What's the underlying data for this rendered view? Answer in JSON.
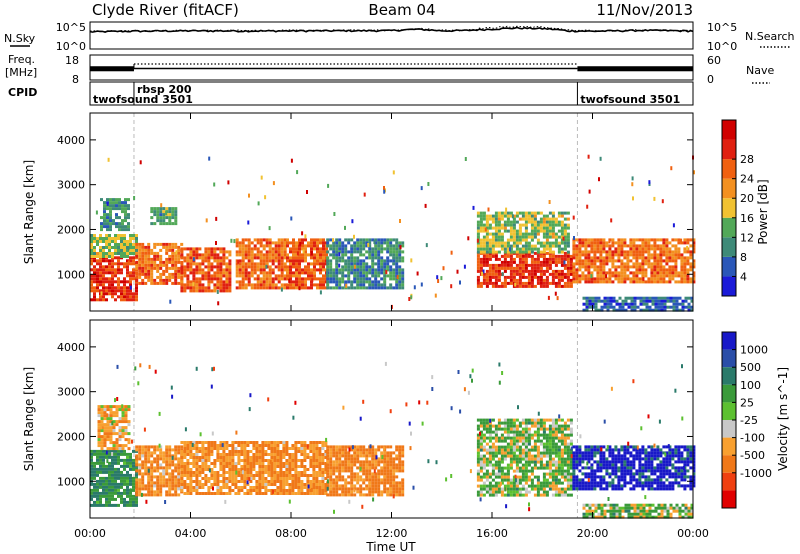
{
  "header": {
    "station": "Clyde River (fitACF)",
    "beam": "Beam 04",
    "date": "11/Nov/2013"
  },
  "side_labels": {
    "nsky": "N.Sky",
    "nsearch": "N.Search",
    "freq_line1": "Freq.",
    "freq_line2": "[MHz]",
    "nave": "Nave",
    "cpid": "CPID"
  },
  "noise_axis": {
    "left_ticks": [
      "10^5",
      "10^0"
    ],
    "right_ticks": [
      "10^5",
      "10^0"
    ]
  },
  "freq_axis": {
    "left_ticks": [
      "18",
      "8"
    ],
    "right_ticks": [
      "60",
      "0"
    ]
  },
  "cpid_segments": [
    {
      "label": "twofsound 3501",
      "start": 0.0,
      "end": 1.75
    },
    {
      "label": "rbsp 200",
      "start": 1.75,
      "end": 19.4
    },
    {
      "label": "twofsound 3501",
      "start": 19.4,
      "end": 24.0
    }
  ],
  "colors": {
    "power_scale": [
      "#1b1bd8",
      "#2a57b8",
      "#3e8a78",
      "#52a858",
      "#f1c232",
      "#f39020",
      "#f06010",
      "#e02010",
      "#d00000"
    ],
    "velocity_scale": [
      "#1818c8",
      "#2a4ea8",
      "#2a7a6a",
      "#3a9a3a",
      "#5cc030",
      "#c8c8c8",
      "#f8a030",
      "#f07818",
      "#f04010",
      "#e00000"
    ]
  },
  "chart_data": [
    {
      "type": "line",
      "title": "",
      "xlabel": "",
      "ylabel": "N.Sky",
      "y2label": "N.Search",
      "xlim": [
        0,
        24
      ],
      "ylim": [
        1,
        100000
      ],
      "yscale": "log",
      "series": [
        {
          "name": "N.Sky",
          "style": "solid",
          "x": [
            0,
            2,
            4,
            6,
            8,
            10,
            12,
            13,
            14,
            15,
            16,
            17,
            18,
            19,
            20,
            22,
            24
          ],
          "values": [
            1800,
            2600,
            3000,
            2800,
            2900,
            3100,
            3400,
            6500,
            3000,
            3500,
            7000,
            12000,
            9000,
            3000,
            2400,
            3800,
            2800
          ]
        },
        {
          "name": "N.Search",
          "style": "dotted",
          "x": [
            0,
            2,
            4,
            6,
            8,
            10,
            12,
            13,
            14,
            15,
            16,
            17,
            18,
            19,
            20,
            22,
            24
          ],
          "values": [
            2200,
            3200,
            3600,
            3300,
            3500,
            3800,
            4200,
            9000,
            4000,
            5000,
            14000,
            26000,
            18000,
            4000,
            2900,
            4500,
            3300
          ]
        }
      ]
    },
    {
      "type": "line",
      "title": "",
      "xlabel": "",
      "ylabel": "Freq. [MHz]",
      "y2label": "Nave",
      "xlim": [
        0,
        24
      ],
      "ylim": [
        8,
        18
      ],
      "y2lim": [
        0,
        60
      ],
      "series": [
        {
          "name": "Freq.",
          "style": "solid",
          "x": [
            0,
            1.75,
            1.76,
            19.4,
            19.41,
            24
          ],
          "values": [
            12.5,
            12.5,
            12.5,
            12.5,
            12.5,
            12.5
          ]
        },
        {
          "name": "Nave",
          "style": "dotted",
          "x": [
            1.75,
            19.4
          ],
          "values": [
            40,
            40
          ]
        }
      ]
    },
    {
      "type": "heatmap",
      "title": "",
      "xlabel": "",
      "ylabel": "Slant Range [km]",
      "colorbar_label": "Power [dB]",
      "colorbar_ticks": [
        4,
        8,
        12,
        16,
        20,
        24,
        28
      ],
      "xlim": [
        0,
        24
      ],
      "ylim": [
        180,
        4600
      ],
      "x_ticks": [
        "00:00",
        "04:00",
        "08:00",
        "12:00",
        "16:00",
        "20:00",
        "00:00"
      ],
      "y_ticks": [
        1000,
        2000,
        3000,
        4000
      ],
      "blobs": [
        {
          "t0": 0.0,
          "t1": 1.8,
          "r0": 450,
          "r1": 1400,
          "value": 26
        },
        {
          "t0": 0.0,
          "t1": 1.8,
          "r0": 1400,
          "r1": 1900,
          "value": 14
        },
        {
          "t0": 0.4,
          "t1": 1.5,
          "r0": 2000,
          "r1": 2700,
          "value": 10
        },
        {
          "t0": 1.8,
          "t1": 3.6,
          "r0": 800,
          "r1": 1700,
          "value": 22
        },
        {
          "t0": 2.4,
          "t1": 3.4,
          "r0": 2100,
          "r1": 2500,
          "value": 11
        },
        {
          "t0": 3.6,
          "t1": 5.6,
          "r0": 600,
          "r1": 1600,
          "value": 24
        },
        {
          "t0": 5.8,
          "t1": 7.8,
          "r0": 700,
          "r1": 1800,
          "value": 22
        },
        {
          "t0": 7.8,
          "t1": 9.4,
          "r0": 700,
          "r1": 1800,
          "value": 24
        },
        {
          "t0": 9.4,
          "t1": 12.4,
          "r0": 700,
          "r1": 1800,
          "value": 9
        },
        {
          "t0": 15.4,
          "t1": 19.2,
          "r0": 700,
          "r1": 1500,
          "value": 26
        },
        {
          "t0": 15.4,
          "t1": 19.0,
          "r0": 1500,
          "r1": 2400,
          "value": 14
        },
        {
          "t0": 19.2,
          "t1": 24.0,
          "r0": 800,
          "r1": 1800,
          "value": 22
        },
        {
          "t0": 19.6,
          "t1": 24.0,
          "r0": 200,
          "r1": 500,
          "value": 6
        }
      ]
    },
    {
      "type": "heatmap",
      "title": "",
      "xlabel": "Time UT",
      "ylabel": "Slant Range [km]",
      "colorbar_label": "Velocity [m s^-1]",
      "colorbar_ticks": [
        "1000",
        "500",
        "100",
        "25",
        "-25",
        "-100",
        "-500",
        "-1000"
      ],
      "xlim": [
        0,
        24
      ],
      "ylim": [
        180,
        4600
      ],
      "x_ticks": [
        "00:00",
        "04:00",
        "08:00",
        "12:00",
        "16:00",
        "20:00",
        "00:00"
      ],
      "y_ticks": [
        1000,
        2000,
        3000,
        4000
      ],
      "blobs": [
        {
          "t0": 0.0,
          "t1": 1.8,
          "r0": 450,
          "r1": 1700,
          "value": 300
        },
        {
          "t0": 0.3,
          "t1": 1.6,
          "r0": 1700,
          "r1": 2700,
          "value": -200
        },
        {
          "t0": 1.8,
          "t1": 3.6,
          "r0": 700,
          "r1": 1800,
          "value": -300
        },
        {
          "t0": 3.6,
          "t1": 9.4,
          "r0": 700,
          "r1": 1900,
          "value": -300
        },
        {
          "t0": 9.4,
          "t1": 12.4,
          "r0": 700,
          "r1": 1800,
          "value": -400
        },
        {
          "t0": 15.4,
          "t1": 19.2,
          "r0": 700,
          "r1": 2400,
          "value": 60
        },
        {
          "t0": 19.2,
          "t1": 24.0,
          "r0": 800,
          "r1": 1800,
          "value": 900
        },
        {
          "t0": 19.6,
          "t1": 24.0,
          "r0": 200,
          "r1": 500,
          "value": 60
        }
      ]
    }
  ]
}
